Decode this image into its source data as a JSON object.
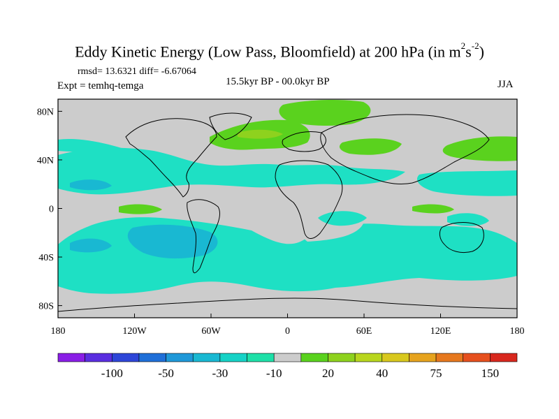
{
  "chart_data": {
    "type": "heatmap",
    "title_main": "Eddy Kinetic Energy (Low Pass, Bloomfield) at 200 hPa (in m",
    "title_sup1": "2",
    "title_mid": "s",
    "title_sup2": "-2",
    "title_end": ")",
    "stats_text": "rmsd= 13.6321 diff= -6.67064",
    "experiment_text": "Expt = temhq-temga",
    "period_text": "15.5kyr BP - 00.0kyr BP",
    "season_text": "JJA",
    "x_range": [
      -180,
      180
    ],
    "y_range": [
      -90,
      90
    ],
    "x_ticks": [
      {
        "value": -180,
        "label": "180"
      },
      {
        "value": -120,
        "label": "120W"
      },
      {
        "value": -60,
        "label": "60W"
      },
      {
        "value": 0,
        "label": "0"
      },
      {
        "value": 60,
        "label": "60E"
      },
      {
        "value": 120,
        "label": "120E"
      },
      {
        "value": 180,
        "label": "180"
      }
    ],
    "y_ticks": [
      {
        "value": 80,
        "label": "80N"
      },
      {
        "value": 40,
        "label": "40N"
      },
      {
        "value": 0,
        "label": "0"
      },
      {
        "value": -40,
        "label": "40S"
      },
      {
        "value": -80,
        "label": "80S"
      }
    ],
    "colorbar": {
      "colors": [
        "#8a1ee6",
        "#5a2ee0",
        "#2e46d8",
        "#1f6fd8",
        "#1f98d8",
        "#19b8d2",
        "#16d2c6",
        "#1ee0a8",
        "#cccccc",
        "#5ad21e",
        "#8ed21e",
        "#b8d61e",
        "#d8c81e",
        "#e6a31e",
        "#e6781e",
        "#e6501e",
        "#d8281e"
      ],
      "labels": [
        {
          "after_index": 1,
          "text": "-100"
        },
        {
          "after_index": 3,
          "text": "-50"
        },
        {
          "after_index": 5,
          "text": "-30"
        },
        {
          "after_index": 7,
          "text": "-10"
        },
        {
          "after_index": 9,
          "text": "20"
        },
        {
          "after_index": 11,
          "text": "40"
        },
        {
          "after_index": 13,
          "text": "75"
        },
        {
          "after_index": 15,
          "text": "150"
        }
      ]
    },
    "regions": [
      {
        "level": "cyan",
        "lon": [
          -180,
          180
        ],
        "lat": [
          -62,
          -20
        ],
        "note": "southern hemisphere storm track band"
      },
      {
        "level": "cyan",
        "lon": [
          -180,
          80
        ],
        "lat": [
          15,
          40
        ],
        "note": "northern subtropical band"
      },
      {
        "level": "blue",
        "lon": [
          -100,
          -60
        ],
        "lat": [
          -40,
          -25
        ],
        "note": "south pacific minimum"
      },
      {
        "level": "green",
        "lon": [
          -10,
          40
        ],
        "lat": [
          65,
          82
        ],
        "note": "arctic positive region"
      },
      {
        "level": "green",
        "lon": [
          -70,
          10
        ],
        "lat": [
          40,
          62
        ],
        "note": "north atlantic positive region"
      },
      {
        "level": "green",
        "lon": [
          130,
          180
        ],
        "lat": [
          40,
          55
        ],
        "note": "north pacific positive region"
      }
    ]
  }
}
